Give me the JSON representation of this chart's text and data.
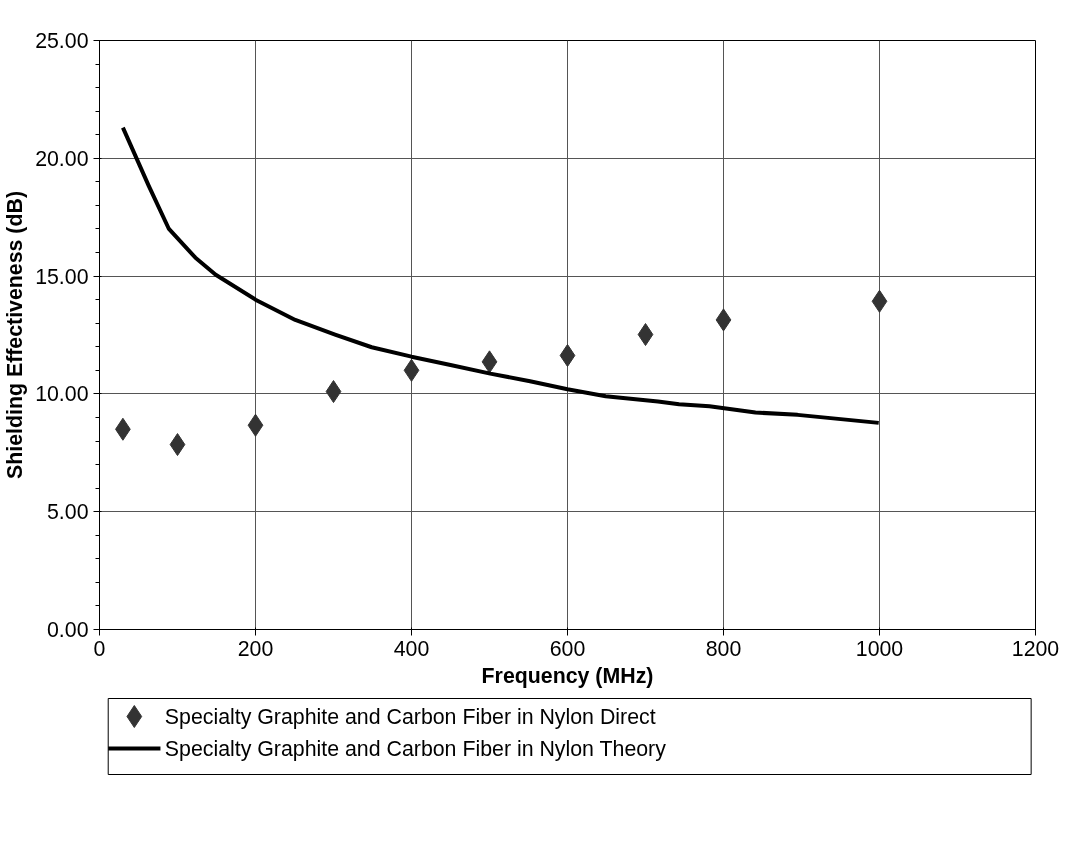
{
  "chart_data": {
    "type": "scatter",
    "xlabel": "Frequency (MHz)",
    "ylabel": "Shielding Effectiveness (dB)",
    "xlim": [
      0,
      1200
    ],
    "xticks": [
      0,
      200,
      400,
      600,
      800,
      1000,
      1200
    ],
    "ylim": [
      0,
      25
    ],
    "yticks": [
      {
        "value": 0,
        "label": "0.00"
      },
      {
        "value": 5,
        "label": "5.00"
      },
      {
        "value": 10,
        "label": "10.00"
      },
      {
        "value": 15,
        "label": "15.00"
      },
      {
        "value": 20,
        "label": "20.00"
      },
      {
        "value": 25,
        "label": "25.00"
      }
    ],
    "grid": true,
    "legend": "bottom",
    "series": [
      {
        "name": "Specialty Graphite and Carbon Fiber in Nylon Direct",
        "marker": "diamond",
        "color": "#333333",
        "x": [
          30,
          100,
          200,
          300,
          400,
          500,
          600,
          700,
          800,
          1000
        ],
        "values": [
          8.5,
          7.85,
          8.67,
          10.1,
          11.0,
          11.36,
          11.63,
          12.52,
          13.14,
          13.93
        ]
      },
      {
        "name": "Specialty Graphite and Carbon Fiber in Nylon Theory",
        "type": "line",
        "marker": "none",
        "line_style": "solid",
        "color": "#000000",
        "x": [
          30,
          63,
          89,
          123,
          149,
          200,
          251,
          302,
          349,
          400,
          450,
          501,
          552,
          600,
          649,
          716,
          743,
          782,
          841,
          895,
          999
        ],
        "values": [
          21.3,
          18.84,
          17.0,
          15.78,
          15.06,
          14.0,
          13.14,
          12.52,
          11.98,
          11.58,
          11.23,
          10.86,
          10.54,
          10.2,
          9.9,
          9.68,
          9.56,
          9.48,
          9.21,
          9.11,
          8.77
        ]
      }
    ]
  }
}
